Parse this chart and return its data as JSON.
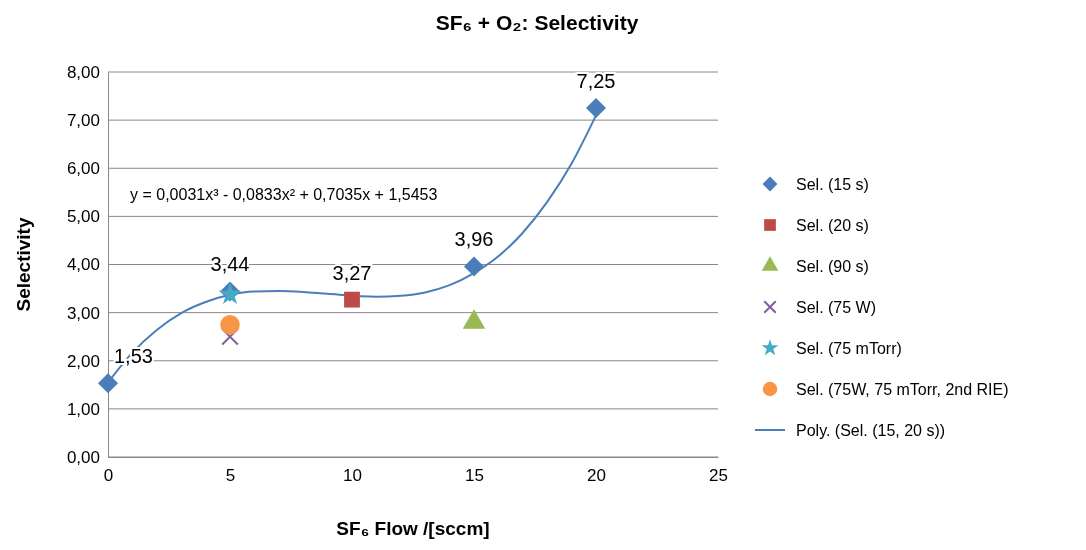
{
  "chart_data": {
    "type": "scatter",
    "title": "SF₆ + O₂: Selectivity",
    "xlabel": "SF₆ Flow /[sccm]",
    "ylabel": "Selectivity",
    "xlim": [
      0,
      25
    ],
    "xticks": [
      0,
      5,
      10,
      15,
      20,
      25
    ],
    "ylim": [
      0,
      8
    ],
    "yticks": [
      {
        "value": 0,
        "label": "0,00"
      },
      {
        "value": 1,
        "label": "1,00"
      },
      {
        "value": 2,
        "label": "2,00"
      },
      {
        "value": 3,
        "label": "3,00"
      },
      {
        "value": 4,
        "label": "4,00"
      },
      {
        "value": 5,
        "label": "5,00"
      },
      {
        "value": 6,
        "label": "6,00"
      },
      {
        "value": 7,
        "label": "7,00"
      },
      {
        "value": 8,
        "label": "8,00"
      }
    ],
    "grid": "y",
    "legend": "right",
    "annotations": [
      "y = 0,0031x³ - 0,0833x² + 0,7035x + 1,5453"
    ],
    "series": [
      {
        "name": "Sel. (15 s)",
        "color": "#4a7ebb",
        "marker": "diamond",
        "x": [
          0,
          5,
          15,
          20
        ],
        "values": [
          1.53,
          3.44,
          3.96,
          7.25
        ],
        "value_labels": [
          "1,53",
          "3,44",
          "3,96",
          "7,25"
        ]
      },
      {
        "name": "Sel. (20 s)",
        "color": "#be4b48",
        "marker": "square",
        "x": [
          10
        ],
        "values": [
          3.27
        ],
        "value_labels": [
          "3,27"
        ]
      },
      {
        "name": "Sel. (90 s)",
        "color": "#98b954",
        "marker": "triangle",
        "x": [
          15
        ],
        "values": [
          2.8
        ]
      },
      {
        "name": "Sel. (75 W)",
        "color": "#7d60a0",
        "marker": "cross",
        "x": [
          5
        ],
        "values": [
          2.5
        ]
      },
      {
        "name": "Sel. (75 mTorr)",
        "color": "#46aac5",
        "marker": "star",
        "x": [
          5
        ],
        "values": [
          3.38
        ]
      },
      {
        "name": "Sel. (75W, 75 mTorr, 2nd RIE)",
        "color": "#f79646",
        "marker": "circle",
        "x": [
          5
        ],
        "values": [
          2.75
        ]
      },
      {
        "name": "Poly. (Sel. (15, 20 s))",
        "type": "line",
        "color": "#4a7ebb",
        "marker": "none",
        "x": [
          0,
          1,
          2,
          3,
          4,
          5,
          6,
          7,
          8,
          9,
          10,
          11,
          12,
          13,
          14,
          15,
          16,
          17,
          18,
          19,
          20
        ],
        "values": [
          1.55,
          2.17,
          2.64,
          2.99,
          3.22,
          3.37,
          3.44,
          3.45,
          3.43,
          3.39,
          null,
          3.33,
          3.35,
          3.42,
          3.57,
          3.82,
          4.17,
          4.66,
          5.3,
          6.1,
          7.1
        ]
      }
    ]
  }
}
